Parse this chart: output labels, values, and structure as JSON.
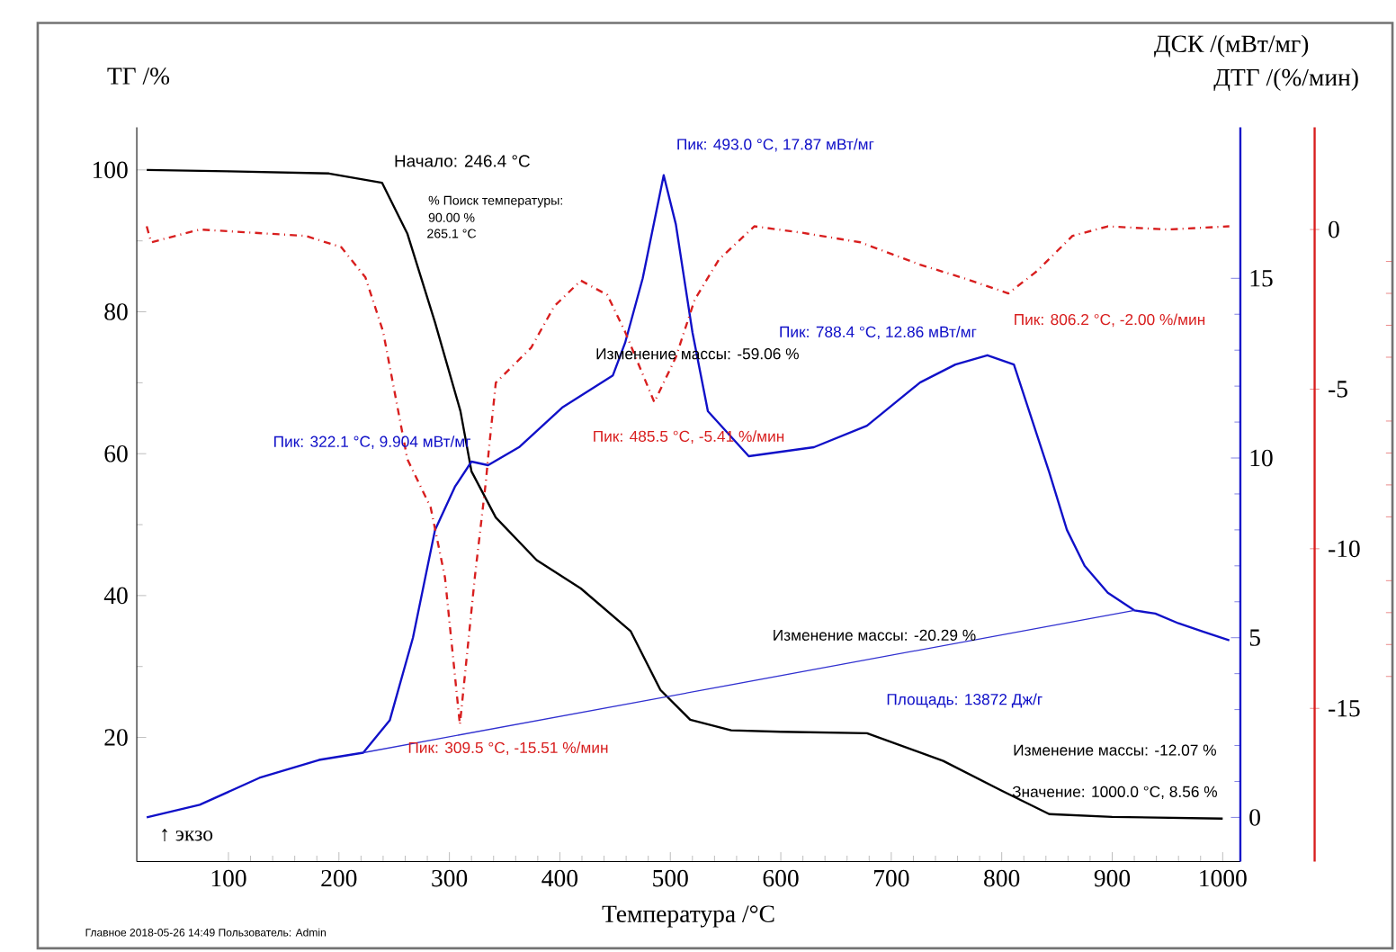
{
  "chart_data": {
    "type": "line",
    "xlabel": "Температура /°C",
    "ylabel": "ТГ /%",
    "y2label": "ДСК /(мВт/мг)",
    "y3label": "ДТГ /(%/мин)",
    "xlim": [
      17,
      1016
    ],
    "xticks": [
      100,
      200,
      300,
      400,
      500,
      600,
      700,
      800,
      900,
      1000
    ],
    "ylim": [
      2.5,
      106
    ],
    "yticks": [
      20,
      40,
      60,
      80,
      100
    ],
    "y2lim": [
      -1.23,
      19.2
    ],
    "y2ticks": [
      0,
      5,
      10,
      15
    ],
    "y3lim": [
      -19.8,
      3.2
    ],
    "y3ticks": [
      -15,
      -10,
      -5,
      0
    ],
    "series": [
      {
        "color": "#000000",
        "line_style": "solid",
        "x": [
          26,
          100,
          191,
          239,
          262,
          287,
          310,
          320,
          342,
          379,
          419,
          464,
          491,
          518,
          555,
          600,
          678,
          747,
          800,
          843,
          900,
          1000
        ],
        "values": [
          100,
          99.8,
          99.5,
          98.2,
          91,
          78.5,
          66,
          57.5,
          51,
          45,
          41,
          35,
          26.7,
          22.5,
          21,
          20.8,
          20.6,
          16.7,
          12.5,
          9.2,
          8.8,
          8.56
        ]
      },
      {
        "color": "#1010c8",
        "line_style": "solid",
        "axis": "y2",
        "x": [
          26,
          74,
          128,
          182,
          222,
          246,
          267,
          287,
          305,
          320,
          335,
          363,
          402,
          448,
          459,
          475,
          494,
          505,
          520,
          534,
          571,
          630,
          678,
          726,
          758,
          787,
          811,
          843,
          859,
          875,
          896,
          920,
          939,
          960,
          982,
          1006
        ],
        "values": [
          0,
          0.35,
          1.1,
          1.6,
          1.8,
          2.7,
          5.0,
          8.0,
          9.2,
          9.9,
          9.8,
          10.3,
          11.4,
          12.3,
          13.2,
          15.0,
          17.87,
          16.5,
          13.5,
          11.3,
          10.05,
          10.3,
          10.9,
          12.1,
          12.6,
          12.86,
          12.6,
          9.6,
          8.0,
          7.0,
          6.25,
          5.76,
          5.67,
          5.4,
          5.17,
          4.93
        ]
      },
      {
        "color": "#d81e1e",
        "line_style": "dashdot",
        "axis": "y3",
        "x": [
          26,
          30,
          74,
          170,
          202,
          224,
          240,
          262,
          283,
          296,
          309.5,
          323,
          333,
          336,
          342,
          374,
          395,
          419,
          443,
          459,
          485.5,
          505,
          522,
          544,
          576,
          619,
          672,
          726,
          768,
          806,
          832,
          864,
          896,
          950,
          1006
        ],
        "values": [
          0.1,
          -0.4,
          0,
          -0.2,
          -0.55,
          -1.5,
          -3.2,
          -7.2,
          -8.7,
          -10.9,
          -15.51,
          -10.9,
          -7.9,
          -6.8,
          -4.8,
          -3.7,
          -2.4,
          -1.6,
          -2.05,
          -3.2,
          -5.41,
          -4.0,
          -2.2,
          -0.94,
          0.1,
          -0.1,
          -0.4,
          -1.1,
          -1.55,
          -2.0,
          -1.3,
          -0.2,
          0.1,
          0,
          0.1
        ]
      },
      {
        "color": "#3030d0",
        "line_style": "solid",
        "axis": "y2",
        "x": [
          222,
          920
        ],
        "values": [
          1.8,
          5.76
        ]
      }
    ],
    "annotations": [
      "Начало: 246.4 °C",
      "% Поиск температуры:",
      "90.00 %",
      "265.1 °C",
      "Пик: 493.0 °C, 17.87 мВт/мг",
      "Пик: 322.1 °C, 9.904 мВт/мг",
      "Изменение массы: -59.06 %",
      "Пик: 485.5 °C, -5.41 %/мин",
      "Пик: 788.4 °C, 12.86 мВт/мг",
      "Пик: 806.2 °C, -2.00 %/мин",
      "Пик: 309.5 °C, -15.51 %/мин",
      "Изменение массы: -20.29 %",
      "Площадь: 13872 Дж/г",
      "Изменение массы: -12.07 %",
      "Значение: 1000.0 °C, 8.56 %",
      "↑ экзо",
      "Главное   2018-05-26 14:49   Пользователь: Admin"
    ]
  }
}
